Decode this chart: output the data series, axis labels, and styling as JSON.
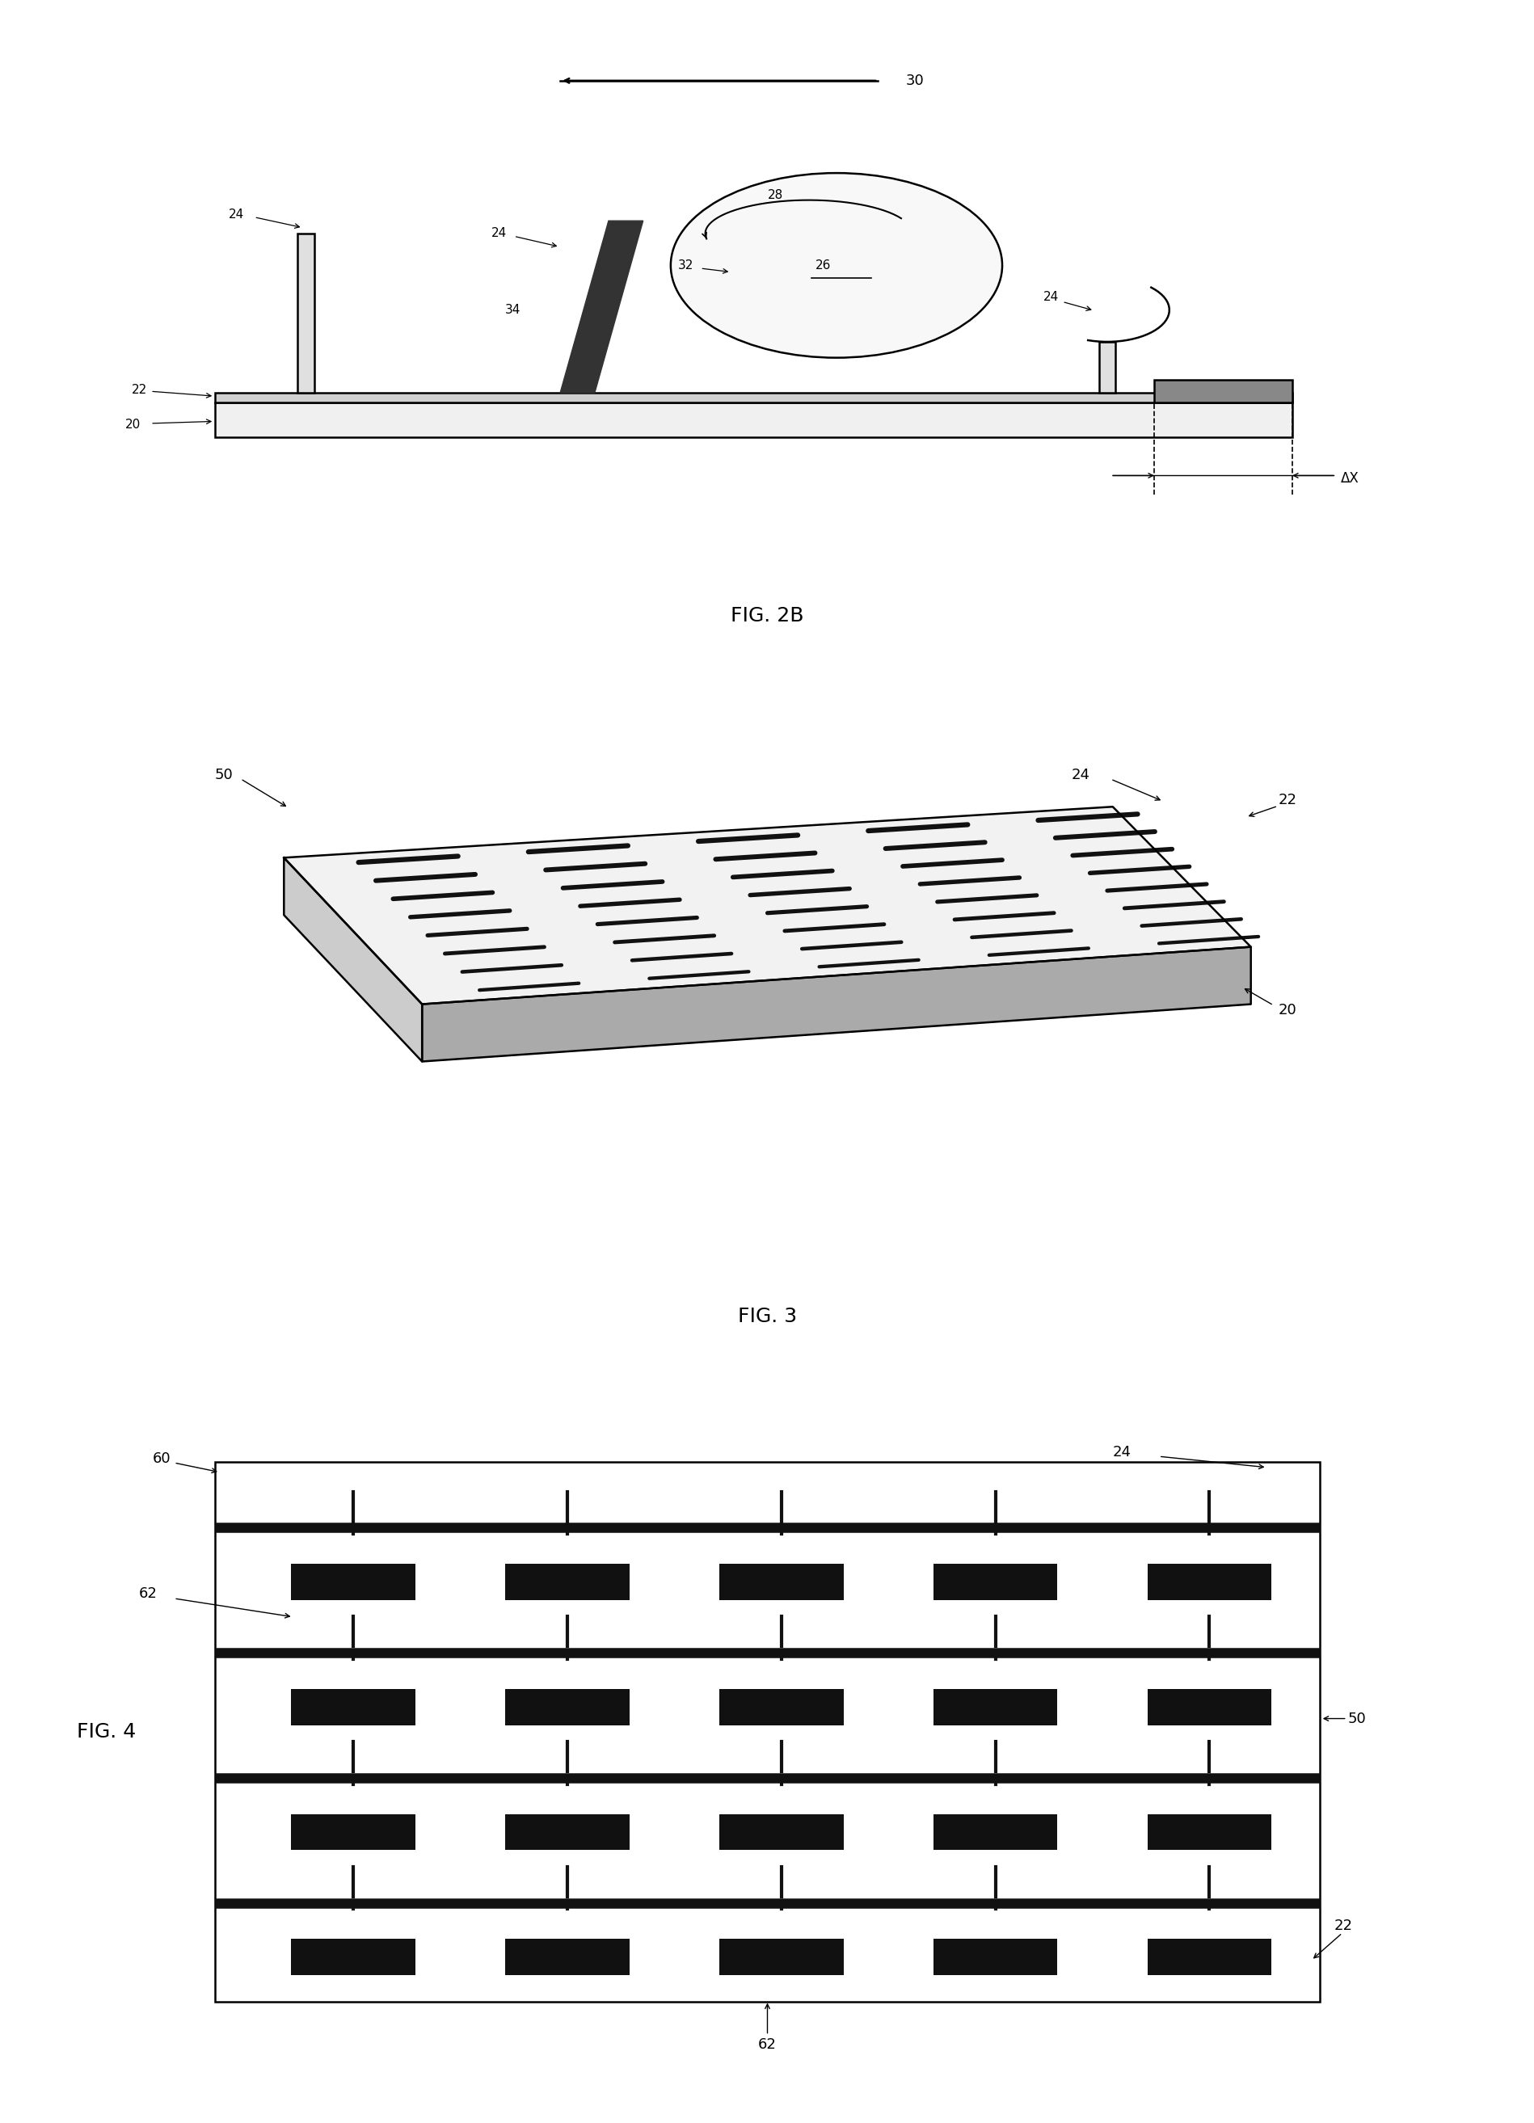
{
  "bg_color": "#ffffff",
  "line_color": "#000000",
  "fig_width": 18.99,
  "fig_height": 26.27,
  "fig2b_title": "FIG. 2B",
  "fig3_title": "FIG. 3",
  "fig4_title": "FIG. 4"
}
